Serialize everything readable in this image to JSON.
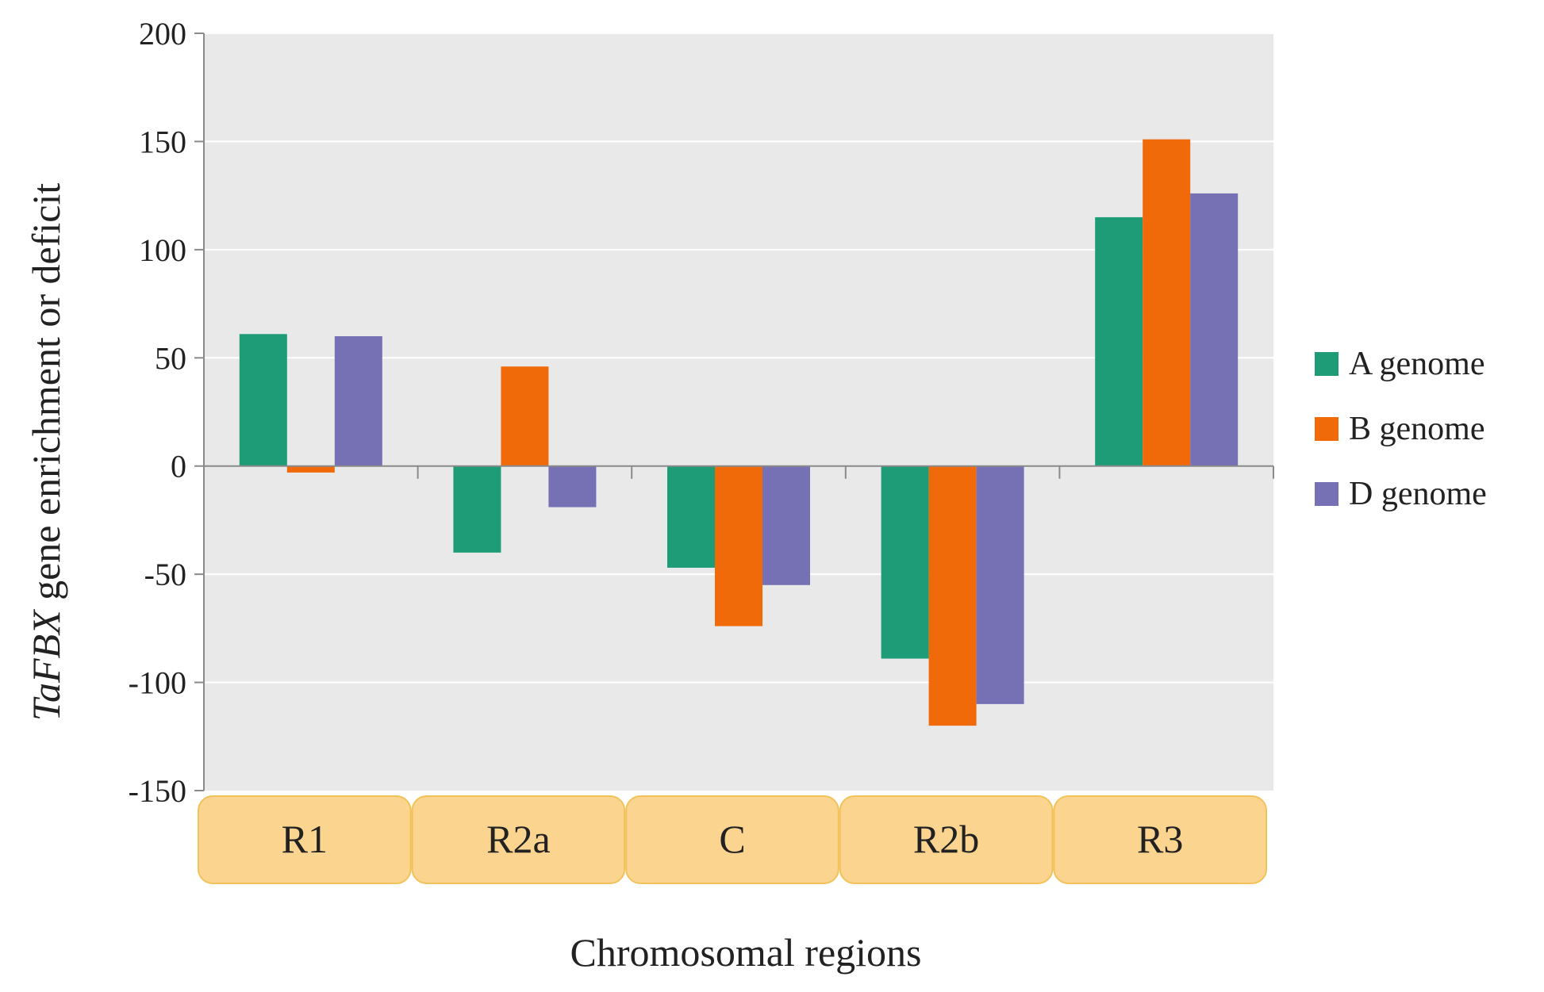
{
  "chart_data": {
    "type": "bar",
    "title": "",
    "xlabel": "Chromosomal regions",
    "ylabel_italic": "TaFBX",
    "ylabel_rest": " gene enrichment or deficit",
    "categories": [
      "R1",
      "R2a",
      "C",
      "R2b",
      "R3"
    ],
    "series": [
      {
        "name": "A genome",
        "color": "#1e9c78",
        "values": [
          61,
          -40,
          -47,
          -89,
          115
        ]
      },
      {
        "name": "B genome",
        "color": "#f06a0a",
        "values": [
          -3,
          46,
          -74,
          -120,
          151
        ]
      },
      {
        "name": "D genome",
        "color": "#7670b4",
        "values": [
          60,
          -19,
          -55,
          -110,
          126
        ]
      }
    ],
    "ylim": [
      -150,
      200
    ],
    "yticks": [
      -150,
      -100,
      -50,
      0,
      50,
      100,
      150,
      200
    ],
    "ytick_labels": [
      "-150",
      "-100",
      "-50",
      "0",
      "50",
      "100",
      "150",
      "200"
    ],
    "grid": true,
    "legend_position": "right",
    "plot_background": "#e9e9e9",
    "category_box_fill": "#fbd48f",
    "category_box_stroke": "#f2c25a"
  }
}
